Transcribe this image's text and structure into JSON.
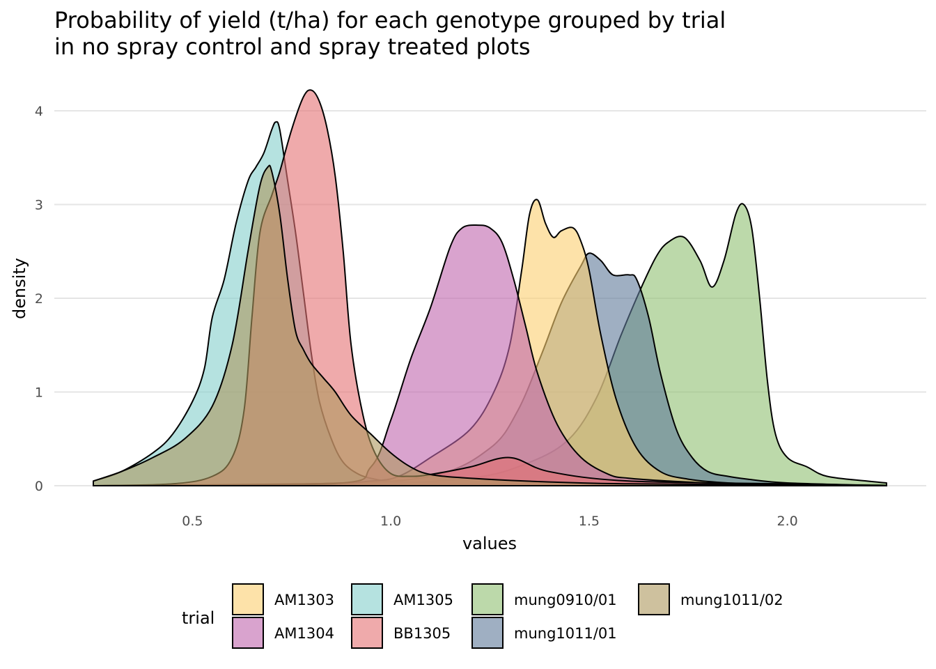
{
  "title": {
    "line1": "Probability of yield (t/ha) for each genotype grouped by trial",
    "line2": "in no spray control and spray treated plots"
  },
  "colors": {
    "AM1303": "#FCCF70",
    "AM1305": "#84CFCB",
    "BB1305": "#E57273",
    "AM1304": "#BF66AD",
    "mung1011/01": "#5F7999",
    "mung1011/02": "#AD985E",
    "mung0910/01": "#8FC071"
  },
  "chart_data": {
    "type": "area",
    "subtype": "density",
    "xlabel": "values",
    "ylabel": "density",
    "xlim": [
      0.25,
      2.25
    ],
    "ylim": [
      0,
      4.25
    ],
    "x_ticks": [
      0.5,
      1.0,
      1.5,
      2.0
    ],
    "x_tick_labels": [
      "0.5",
      "1.0",
      "1.5",
      "2.0"
    ],
    "y_ticks": [
      0,
      1,
      2,
      3,
      4
    ],
    "y_tick_labels": [
      "0",
      "1",
      "2",
      "3",
      "4"
    ],
    "grid": true,
    "legend": {
      "title": "trial",
      "position": "bottom",
      "entries": [
        "AM1303",
        "AM1304",
        "AM1305",
        "BB1305",
        "mung0910/01",
        "mung1011/01",
        "mung1011/02"
      ]
    },
    "series": [
      {
        "name": "AM1305",
        "x": [
          0.25,
          0.32,
          0.4,
          0.45,
          0.5,
          0.53,
          0.55,
          0.58,
          0.61,
          0.64,
          0.66,
          0.68,
          0.7,
          0.71,
          0.72,
          0.74,
          0.76,
          0.78,
          0.8,
          0.82,
          0.85,
          0.88,
          0.92,
          0.96,
          1.0,
          1.1,
          1.3,
          1.6,
          2.0,
          2.25
        ],
        "y": [
          0.05,
          0.15,
          0.35,
          0.55,
          0.9,
          1.25,
          1.8,
          2.2,
          2.8,
          3.25,
          3.4,
          3.55,
          3.8,
          3.88,
          3.8,
          3.25,
          2.7,
          2.05,
          1.4,
          0.9,
          0.5,
          0.25,
          0.12,
          0.07,
          0.05,
          0.03,
          0.02,
          0.02,
          0.01,
          0.01
        ]
      },
      {
        "name": "mung0910/01",
        "x": [
          0.25,
          0.9,
          1.2,
          1.35,
          1.45,
          1.52,
          1.58,
          1.63,
          1.67,
          1.7,
          1.74,
          1.78,
          1.81,
          1.84,
          1.87,
          1.89,
          1.91,
          1.93,
          1.95,
          1.97,
          2.0,
          2.05,
          2.1,
          2.2,
          2.25
        ],
        "y": [
          0.0,
          0.02,
          0.08,
          0.25,
          0.5,
          0.95,
          1.6,
          2.1,
          2.45,
          2.6,
          2.65,
          2.4,
          2.12,
          2.4,
          2.9,
          3.0,
          2.75,
          2.0,
          1.1,
          0.55,
          0.3,
          0.2,
          0.1,
          0.05,
          0.03
        ]
      },
      {
        "name": "mung1011/01",
        "x": [
          0.25,
          0.8,
          1.1,
          1.25,
          1.32,
          1.38,
          1.43,
          1.48,
          1.5,
          1.53,
          1.56,
          1.6,
          1.62,
          1.65,
          1.68,
          1.72,
          1.76,
          1.8,
          1.85,
          1.9,
          2.0,
          2.25
        ],
        "y": [
          0.0,
          0.02,
          0.1,
          0.4,
          0.8,
          1.4,
          1.95,
          2.35,
          2.48,
          2.4,
          2.25,
          2.25,
          2.2,
          1.8,
          1.2,
          0.6,
          0.3,
          0.15,
          0.1,
          0.07,
          0.03,
          0.0
        ]
      },
      {
        "name": "AM1303",
        "x": [
          0.25,
          0.8,
          0.95,
          1.02,
          1.1,
          1.2,
          1.26,
          1.3,
          1.33,
          1.35,
          1.37,
          1.39,
          1.41,
          1.43,
          1.46,
          1.48,
          1.5,
          1.53,
          1.57,
          1.62,
          1.68,
          1.75,
          1.85,
          2.0,
          2.25
        ],
        "y": [
          0.0,
          0.02,
          0.05,
          0.1,
          0.3,
          0.6,
          1.0,
          1.5,
          2.3,
          2.9,
          3.05,
          2.8,
          2.65,
          2.72,
          2.75,
          2.6,
          2.3,
          1.6,
          0.9,
          0.4,
          0.15,
          0.07,
          0.03,
          0.01,
          0.0
        ]
      },
      {
        "name": "AM1304",
        "x": [
          0.25,
          0.85,
          0.95,
          1.0,
          1.05,
          1.1,
          1.15,
          1.18,
          1.22,
          1.25,
          1.28,
          1.31,
          1.34,
          1.37,
          1.42,
          1.48,
          1.55,
          1.6,
          1.7,
          1.85,
          2.0,
          2.25
        ],
        "y": [
          0.0,
          0.02,
          0.2,
          0.7,
          1.35,
          1.9,
          2.55,
          2.75,
          2.78,
          2.75,
          2.6,
          2.2,
          1.7,
          1.2,
          0.65,
          0.3,
          0.12,
          0.08,
          0.05,
          0.02,
          0.01,
          0.0
        ]
      },
      {
        "name": "BB1305",
        "x": [
          0.25,
          0.45,
          0.55,
          0.6,
          0.63,
          0.65,
          0.67,
          0.7,
          0.72,
          0.75,
          0.78,
          0.8,
          0.82,
          0.84,
          0.86,
          0.88,
          0.9,
          0.93,
          0.96,
          1.0,
          1.05,
          1.1,
          1.2,
          1.3,
          1.4,
          1.6,
          2.0,
          2.25
        ],
        "y": [
          0.0,
          0.02,
          0.1,
          0.3,
          0.8,
          1.8,
          2.7,
          3.1,
          3.35,
          3.8,
          4.15,
          4.22,
          4.1,
          3.8,
          3.3,
          2.5,
          1.5,
          0.75,
          0.35,
          0.13,
          0.1,
          0.12,
          0.2,
          0.3,
          0.15,
          0.05,
          0.02,
          0.0
        ]
      },
      {
        "name": "mung1011/02",
        "x": [
          0.25,
          0.32,
          0.4,
          0.48,
          0.55,
          0.6,
          0.64,
          0.67,
          0.69,
          0.7,
          0.72,
          0.74,
          0.76,
          0.78,
          0.8,
          0.83,
          0.86,
          0.9,
          0.95,
          1.0,
          1.05,
          1.1,
          1.2,
          1.4,
          1.6,
          2.0,
          2.25
        ],
        "y": [
          0.05,
          0.15,
          0.3,
          0.5,
          0.85,
          1.5,
          2.5,
          3.2,
          3.4,
          3.35,
          2.9,
          2.2,
          1.65,
          1.45,
          1.3,
          1.15,
          1.0,
          0.75,
          0.55,
          0.35,
          0.2,
          0.12,
          0.08,
          0.04,
          0.02,
          0.01,
          0.0
        ]
      }
    ]
  }
}
